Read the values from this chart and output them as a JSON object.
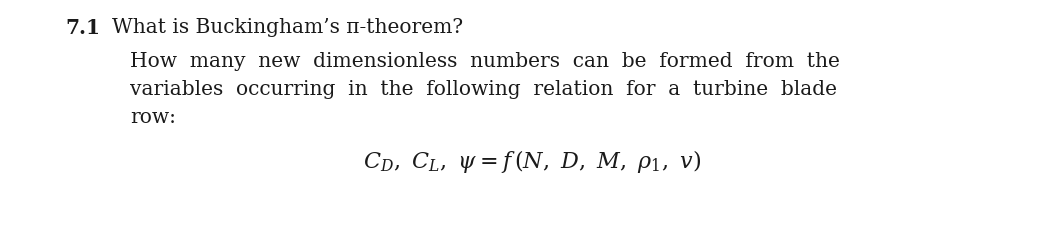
{
  "title_number": "7.1",
  "title_text": "What is Buckingham’s π-theorem?",
  "body_line1": "How  many  new  dimensionless  numbers  can  be  formed  from  the",
  "body_line2": "variables  occurring  in  the  following  relation  for  a  turbine  blade",
  "body_line3": "row:",
  "formula": "$C_D,\\ C_L,\\ \\psi = f\\,(N,\\ D,\\ M,\\ \\rho_1,\\ v)$",
  "bg_color": "#ffffff",
  "text_color": "#1a1a1a",
  "font_size_title": 14.5,
  "font_size_body": 14.5,
  "font_size_formula": 16.0,
  "fig_width": 10.64,
  "fig_height": 2.26,
  "dpi": 100
}
